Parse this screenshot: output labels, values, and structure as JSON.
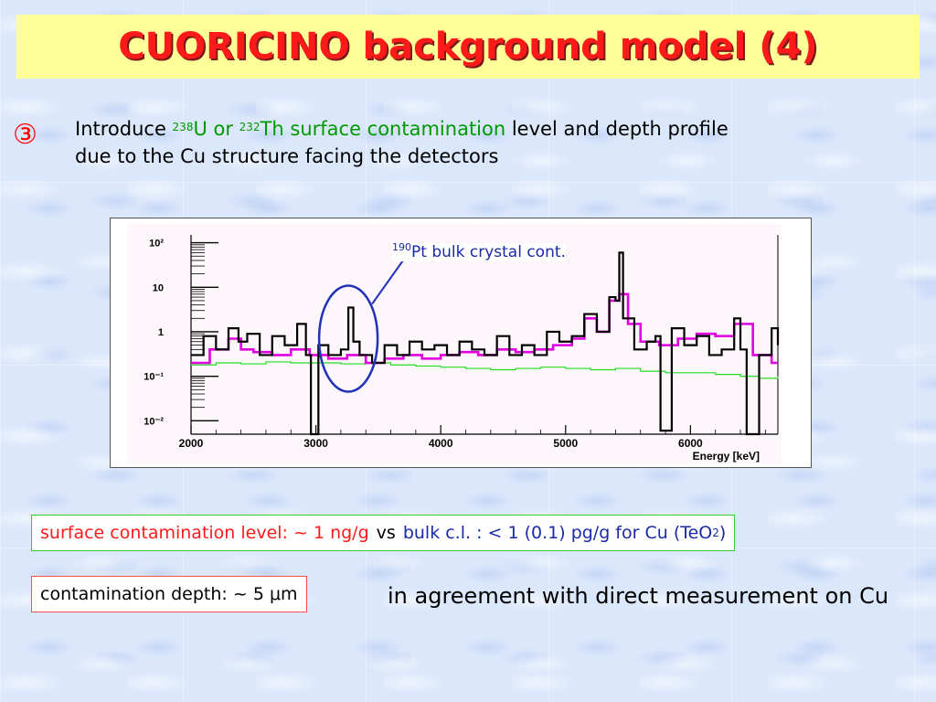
{
  "slide": {
    "title": "CUORICINO background model (4)",
    "bullet_symbol": "③",
    "intro": {
      "p1": "Introduce ",
      "u_mass": "238",
      "u_symbol": "U or ",
      "th_mass": "232",
      "th_symbol": "Th surface contamination",
      "p2": " level and depth profile",
      "line2": "due to the Cu structure facing the detectors"
    },
    "annotation": {
      "mass": "190",
      "text": "Pt bulk crystal cont."
    },
    "level_box": {
      "left": "surface contamination level: ~ 1 ng/g",
      "vs": "vs",
      "right_pre": "bulk c.l. : < 1 (0.1) pg/g for Cu (TeO",
      "sub": "2",
      "right_post": ")"
    },
    "depth_box": {
      "text": "contamination depth: ~ 5 μm"
    },
    "agreement": "in agreement with direct measurement on Cu"
  },
  "chart_data": {
    "type": "line",
    "xlabel": "Energy [keV]",
    "ylabel": "",
    "x_ticks": [
      "2000",
      "3000",
      "4000",
      "5000",
      "6000"
    ],
    "y_ticks": [
      "10⁻²",
      "10⁻¹",
      "1",
      "10",
      "10²"
    ],
    "xlim": [
      2000,
      6700
    ],
    "ylim": [
      0.005,
      150
    ],
    "y_scale": "log",
    "grid": false,
    "series": [
      {
        "color": "#000000",
        "x": [
          2000,
          2100,
          2200,
          2300,
          2380,
          2450,
          2550,
          2650,
          2750,
          2850,
          2920,
          2960,
          3020,
          3100,
          3200,
          3260,
          3300,
          3350,
          3450,
          3550,
          3650,
          3750,
          3850,
          3950,
          4050,
          4150,
          4250,
          4350,
          4450,
          4550,
          4650,
          4750,
          4850,
          4950,
          5050,
          5150,
          5250,
          5350,
          5400,
          5430,
          5460,
          5550,
          5650,
          5720,
          5760,
          5850,
          5950,
          6050,
          6150,
          6250,
          6350,
          6400,
          6450,
          6550,
          6650,
          6700
        ],
        "y": [
          0.3,
          0.8,
          0.4,
          1.2,
          0.6,
          0.9,
          0.3,
          0.8,
          0.5,
          1.5,
          0.3,
          0.004,
          0.5,
          0.3,
          0.4,
          3.5,
          0.6,
          0.3,
          0.2,
          0.5,
          0.3,
          0.6,
          0.4,
          0.5,
          0.3,
          0.6,
          0.4,
          0.3,
          0.8,
          0.3,
          0.5,
          0.3,
          1.0,
          0.6,
          0.8,
          2.5,
          1.0,
          6.0,
          5.0,
          60.0,
          2.0,
          0.4,
          0.6,
          0.8,
          0.006,
          1.2,
          0.5,
          0.8,
          0.3,
          0.4,
          2.0,
          0.4,
          0.004,
          0.3,
          1.2,
          0.5
        ]
      },
      {
        "color": "#e000e0",
        "x": [
          2000,
          2150,
          2300,
          2400,
          2500,
          2650,
          2800,
          2950,
          3100,
          3250,
          3400,
          3550,
          3700,
          3850,
          4000,
          4150,
          4300,
          4450,
          4600,
          4750,
          4900,
          5050,
          5150,
          5250,
          5350,
          5430,
          5500,
          5600,
          5750,
          5900,
          6050,
          6200,
          6350,
          6500,
          6650,
          6700
        ],
        "y": [
          0.2,
          0.4,
          0.7,
          0.4,
          0.35,
          0.3,
          0.4,
          0.3,
          0.25,
          0.3,
          0.2,
          0.25,
          0.3,
          0.25,
          0.3,
          0.35,
          0.3,
          0.4,
          0.35,
          0.4,
          0.5,
          0.7,
          2.0,
          1.0,
          5.0,
          7.0,
          1.5,
          0.6,
          0.5,
          0.7,
          0.9,
          0.8,
          1.5,
          0.3,
          0.2,
          0.2
        ]
      },
      {
        "color": "#22dd22",
        "x": [
          2000,
          2200,
          2400,
          2600,
          2800,
          3000,
          3200,
          3400,
          3600,
          3800,
          4000,
          4200,
          4400,
          4600,
          4800,
          5000,
          5200,
          5400,
          5600,
          5800,
          6000,
          6200,
          6400,
          6550,
          6700
        ],
        "y": [
          0.18,
          0.2,
          0.19,
          0.21,
          0.2,
          0.2,
          0.19,
          0.2,
          0.18,
          0.17,
          0.16,
          0.15,
          0.14,
          0.15,
          0.16,
          0.15,
          0.14,
          0.15,
          0.13,
          0.12,
          0.12,
          0.11,
          0.1,
          0.09,
          0.1
        ]
      }
    ]
  }
}
